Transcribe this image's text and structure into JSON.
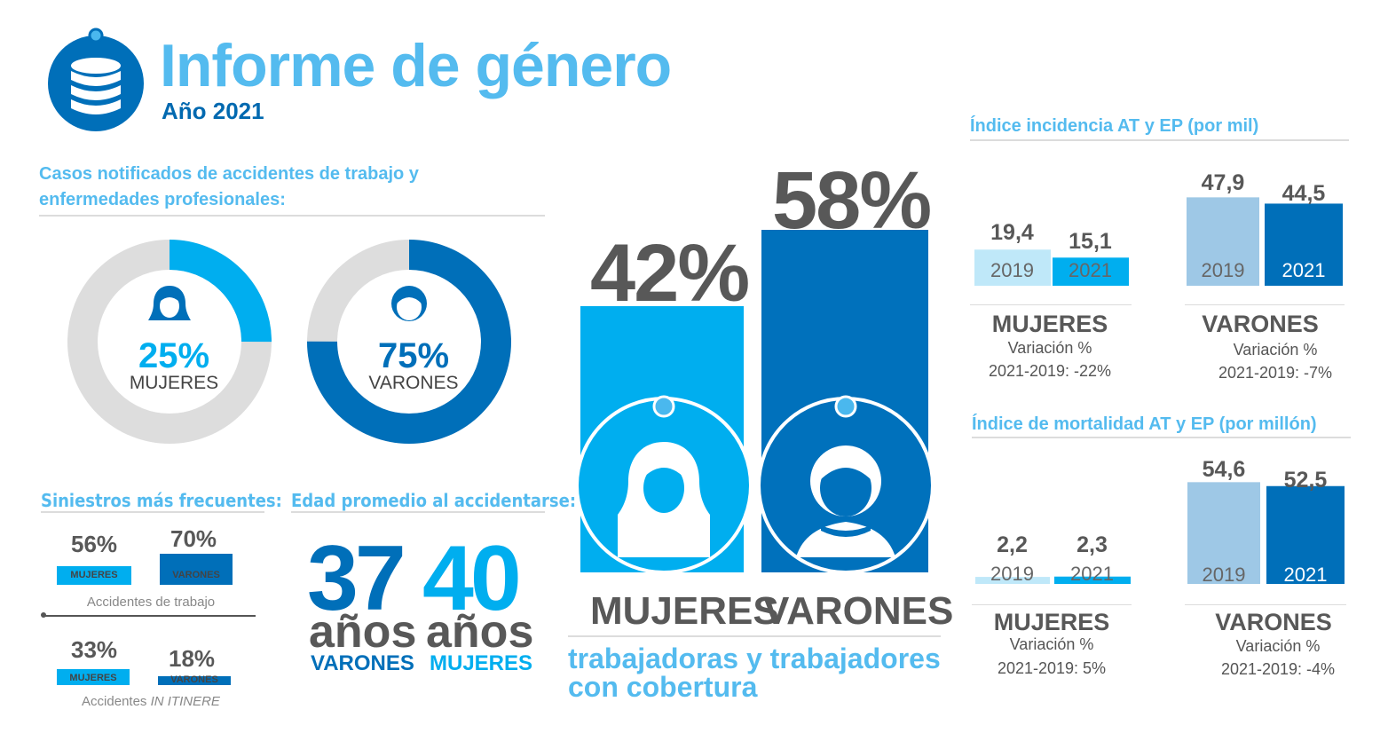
{
  "header": {
    "title": "Informe de género",
    "subtitle": "Año 2021"
  },
  "colors": {
    "light_blue": "#00aeef",
    "dark_blue": "#006fb9",
    "pale_blue": "#bfe8f9",
    "pale_steel": "#9ec8e6",
    "grey": "#dcdcdc",
    "title_blue": "#54bbef"
  },
  "icons": [
    "database-icon",
    "woman-icon",
    "man-icon"
  ],
  "cases": {
    "title": "Casos notificados de accidentes de trabajo y enfermedades profesionales:",
    "women": {
      "pct": "25%",
      "label": "MUJERES"
    },
    "men": {
      "pct": "75%",
      "label": "VARONES"
    }
  },
  "coverage": {
    "women_pct": "42%",
    "men_pct": "58%",
    "women_label": "MUJERES",
    "men_label": "VARONES",
    "caption": "trabajadoras  y trabajadores con cobertura"
  },
  "siniestros": {
    "title": "Siniestros más frecuentes:",
    "trabajo": {
      "women_pct": "56%",
      "men_pct": "70%",
      "women_tag": "MUJERES",
      "men_tag": "VARONES",
      "caption": "Accidentes de trabajo"
    },
    "itinere": {
      "women_pct": "33%",
      "men_pct": "18%",
      "women_tag": "MUJERES",
      "men_tag": "VARONES",
      "caption_a": "Accidentes ",
      "caption_b": "IN ITINERE"
    }
  },
  "edad": {
    "title": "Edad promedio al accidentarse:",
    "men": {
      "num": "37",
      "word": "años",
      "label": "VARONES"
    },
    "women": {
      "num": "40",
      "word": "años",
      "label": "MUJERES"
    }
  },
  "incidencia": {
    "title": "Índice incidencia AT y EP (por mil)",
    "women": {
      "v2019": "19,4",
      "v2021": "15,1",
      "y2019": "2019",
      "y2021": "2021",
      "name": "MUJERES",
      "variation_label": "Variación %",
      "variation": "2021-2019: -22%"
    },
    "men": {
      "v2019": "47,9",
      "v2021": "44,5",
      "y2019": "2019",
      "y2021": "2021",
      "name": "VARONES",
      "variation_label": "Variación %",
      "variation": "2021-2019: -7%"
    }
  },
  "mortalidad": {
    "title": "Índice de mortalidad AT y EP (por millón)",
    "women": {
      "v2019": "2,2",
      "v2021": "2,3",
      "y2019": "2019",
      "y2021": "2021",
      "name": "MUJERES",
      "variation_label": "Variación %",
      "variation": "2021-2019: 5%"
    },
    "men": {
      "v2019": "54,6",
      "v2021": "52,5",
      "y2019": "2019",
      "y2021": "2021",
      "name": "VARONES",
      "variation_label": "Variación %",
      "variation": "2021-2019: -4%"
    }
  },
  "chart_data": [
    {
      "type": "pie",
      "title": "Casos notificados de accidentes de trabajo y enfermedades profesionales:",
      "categories": [
        "MUJERES",
        "VARONES"
      ],
      "values": [
        25,
        75
      ]
    },
    {
      "type": "bar",
      "title": "",
      "categories": [
        "MUJERES",
        "VARONES"
      ],
      "values": [
        42,
        58
      ],
      "ylim": [
        0,
        100
      ]
    },
    {
      "type": "bar",
      "title": "Siniestros más frecuentes:",
      "categories": [
        "Accidentes de trabajo",
        "Accidentes IN ITINERE"
      ],
      "series": [
        {
          "name": "MUJERES",
          "values": [
            56,
            33
          ]
        },
        {
          "name": "VARONES",
          "values": [
            70,
            18
          ]
        }
      ]
    },
    {
      "type": "bar",
      "title": "Edad promedio al accidentarse:",
      "categories": [
        "VARONES",
        "MUJERES"
      ],
      "values": [
        37,
        40
      ]
    },
    {
      "type": "bar",
      "title": "Índice incidencia AT y EP (por mil)",
      "categories": [
        "MUJERES",
        "VARONES"
      ],
      "series": [
        {
          "name": "2019",
          "values": [
            19.4,
            47.9
          ]
        },
        {
          "name": "2021",
          "values": [
            15.1,
            44.5
          ]
        }
      ]
    },
    {
      "type": "bar",
      "title": "Índice de mortalidad AT y EP (por millón)",
      "categories": [
        "MUJERES",
        "VARONES"
      ],
      "series": [
        {
          "name": "2019",
          "values": [
            2.2,
            54.6
          ]
        },
        {
          "name": "2021",
          "values": [
            2.3,
            52.5
          ]
        }
      ]
    }
  ]
}
